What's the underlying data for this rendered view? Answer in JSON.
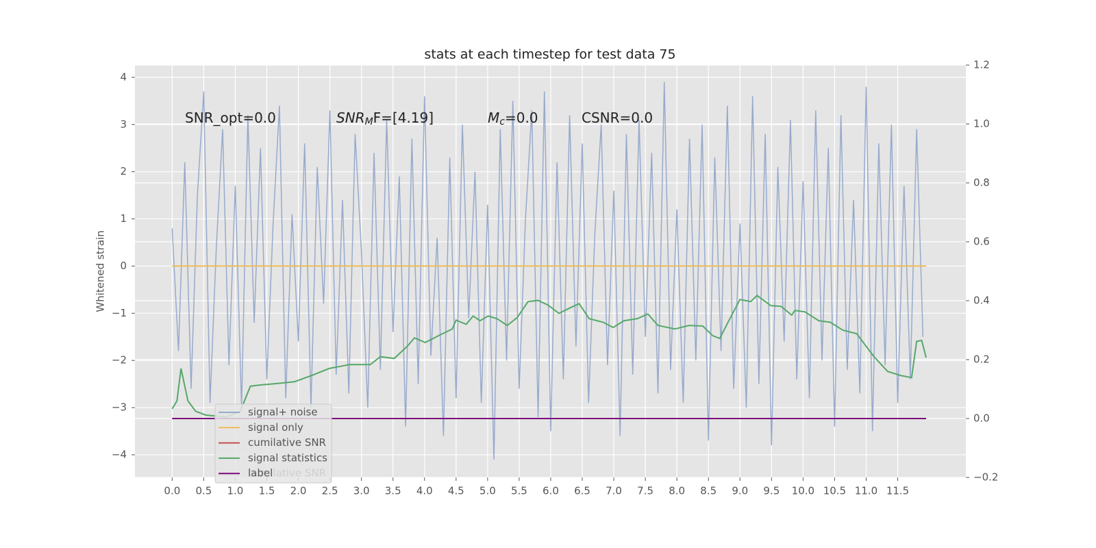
{
  "chart_data": {
    "type": "line",
    "title": "stats at each timestep for test data 75",
    "y_label": "Whitened strain",
    "xlim": [
      -0.59,
      12.58
    ],
    "ylim": [
      -4.48,
      4.26
    ],
    "y2lim": [
      -0.2,
      1.2
    ],
    "grid": true,
    "xticks": [
      {
        "value": 0,
        "label": "0.0"
      },
      0.5,
      {
        "value": 1,
        "label": "1.0"
      },
      1.5,
      {
        "value": 2,
        "label": "2.0"
      },
      2.5,
      {
        "value": 3,
        "label": "3.0"
      },
      3.5,
      {
        "value": 4,
        "label": "4.0"
      },
      4.5,
      {
        "value": 5,
        "label": "5.0"
      },
      5.5,
      {
        "value": 6,
        "label": "6.0"
      },
      6.5,
      {
        "value": 7,
        "label": "7.0"
      },
      7.5,
      {
        "value": 8,
        "label": "8.0"
      },
      8.5,
      {
        "value": 9,
        "label": "9.0"
      },
      9.5,
      {
        "value": 10,
        "label": "10.0"
      },
      10.5,
      {
        "value": 11,
        "label": "11.0"
      },
      11.5
    ],
    "yticks": [
      {
        "value": -4,
        "label": "−4"
      },
      {
        "value": -3,
        "label": "−3"
      },
      {
        "value": -2,
        "label": "−2"
      },
      {
        "value": -1,
        "label": "−1"
      },
      0,
      1,
      2,
      3,
      4
    ],
    "y2ticks": [
      {
        "value": -0.2,
        "label": "−0.2"
      },
      {
        "value": 0,
        "label": "0.0"
      },
      0.2,
      0.4,
      0.6,
      0.8,
      {
        "value": 1,
        "label": "1.0"
      },
      1.2
    ],
    "annotations": [
      {
        "text": "SNR_opt=0.0"
      },
      {
        "italic": "SNR",
        "sub": "M",
        "text": "F=[4.19]"
      },
      {
        "italic": "M",
        "sub": "c",
        "text": "=0.0"
      },
      {
        "text": "CSNR=0.0"
      }
    ],
    "series": [
      {
        "name": "signal+ noise",
        "color": "#97aacd",
        "axis": "y",
        "x": [
          0,
          0.1,
          0.2,
          0.3,
          0.4,
          0.5,
          0.6,
          0.7,
          0.8,
          0.9,
          1,
          1.1,
          1.2,
          1.3,
          1.4,
          1.5,
          1.6,
          1.7,
          1.8,
          1.9,
          2,
          2.1,
          2.2,
          2.3,
          2.4,
          2.5,
          2.6,
          2.7,
          2.8,
          2.9,
          3,
          3.1,
          3.2,
          3.3,
          3.4,
          3.5,
          3.6,
          3.7,
          3.8,
          3.9,
          4,
          4.1,
          4.2,
          4.3,
          4.4,
          4.5,
          4.6,
          4.7,
          4.8,
          4.9,
          5,
          5.1,
          5.2,
          5.3,
          5.4,
          5.5,
          5.6,
          5.7,
          5.8,
          5.9,
          6,
          6.1,
          6.2,
          6.3,
          6.4,
          6.5,
          6.6,
          6.7,
          6.8,
          6.9,
          7,
          7.1,
          7.2,
          7.3,
          7.4,
          7.5,
          7.6,
          7.7,
          7.8,
          7.9,
          8,
          8.1,
          8.2,
          8.3,
          8.4,
          8.5,
          8.6,
          8.7,
          8.8,
          8.9,
          9,
          9.1,
          9.2,
          9.3,
          9.4,
          9.5,
          9.6,
          9.7,
          9.8,
          9.9,
          10,
          10.1,
          10.2,
          10.3,
          10.4,
          10.5,
          10.6,
          10.7,
          10.8,
          10.9,
          11,
          11.1,
          11.2,
          11.3,
          11.4,
          11.5,
          11.6,
          11.7,
          11.8,
          11.9
        ],
        "values": [
          0.8,
          -1.8,
          2.2,
          -2.6,
          1.5,
          3.7,
          -2.9,
          0.4,
          2.9,
          -2.1,
          1.7,
          -3.0,
          3.2,
          -1.2,
          2.5,
          -2.4,
          0.9,
          3.4,
          -2.8,
          1.1,
          -1.6,
          2.6,
          -3.0,
          2.1,
          -0.8,
          3.3,
          -2.3,
          1.4,
          -2.7,
          2.8,
          0.3,
          -3.0,
          2.4,
          -2.2,
          3.1,
          -1.4,
          1.9,
          -3.4,
          2.7,
          -2.5,
          3.6,
          -1.9,
          0.6,
          -3.6,
          2.3,
          -2.8,
          3.0,
          -1.1,
          2.0,
          -2.9,
          1.3,
          -4.1,
          2.9,
          -2.0,
          3.5,
          -2.6,
          1.0,
          3.3,
          -3.2,
          3.7,
          -3.5,
          2.2,
          -2.4,
          3.2,
          -1.7,
          2.6,
          -2.9,
          0.7,
          3.0,
          -2.1,
          1.6,
          -3.6,
          2.8,
          -2.3,
          3.1,
          -1.5,
          2.4,
          -2.7,
          3.9,
          -2.2,
          1.2,
          -2.9,
          2.7,
          -2.0,
          3.0,
          -3.7,
          2.3,
          -1.8,
          3.4,
          -2.6,
          0.9,
          -3.0,
          3.6,
          -2.5,
          2.8,
          -3.8,
          2.1,
          -1.6,
          3.1,
          -2.4,
          1.8,
          -2.8,
          3.3,
          -2.0,
          2.5,
          -3.4,
          3.2,
          -2.2,
          1.4,
          -2.7,
          3.8,
          -3.5,
          2.6,
          -2.1,
          3.0,
          -2.9,
          1.7,
          -2.4,
          2.9,
          -1.5
        ]
      },
      {
        "name": "signal only",
        "color": "#eebc58",
        "axis": "y",
        "x": [
          0,
          11.95
        ],
        "values": [
          0,
          0
        ]
      },
      {
        "name": "cumilative SNR",
        "color": "#c44e52",
        "axis": "y2",
        "x": [
          0,
          11.95
        ],
        "values": [
          0,
          0
        ]
      },
      {
        "name": "signal statistics",
        "color": "#55a868",
        "axis": "y2",
        "x": [
          0,
          0.076,
          0.14,
          0.25,
          0.37,
          0.53,
          0.86,
          1.08,
          1.24,
          1.4,
          1.62,
          1.94,
          2.21,
          2.49,
          2.81,
          3.14,
          3.3,
          3.52,
          3.73,
          3.84,
          4.01,
          4.22,
          4.44,
          4.5,
          4.66,
          4.77,
          4.88,
          5.01,
          5.15,
          5.31,
          5.47,
          5.64,
          5.8,
          5.96,
          6.13,
          6.29,
          6.45,
          6.61,
          6.83,
          6.99,
          7.16,
          7.37,
          7.54,
          7.7,
          7.97,
          8.19,
          8.41,
          8.57,
          8.68,
          8.84,
          9,
          9.17,
          9.27,
          9.49,
          9.65,
          9.82,
          9.87,
          10.03,
          10.25,
          10.43,
          10.63,
          10.85,
          11.12,
          11.34,
          11.55,
          11.72,
          11.8,
          11.88,
          11.95
        ],
        "values": [
          0.033,
          0.06,
          0.17,
          0.06,
          0.025,
          0.012,
          0.005,
          0.025,
          0.11,
          0.114,
          0.118,
          0.125,
          0.146,
          0.17,
          0.183,
          0.183,
          0.21,
          0.204,
          0.246,
          0.274,
          0.258,
          0.281,
          0.304,
          0.334,
          0.32,
          0.348,
          0.332,
          0.348,
          0.339,
          0.316,
          0.343,
          0.397,
          0.401,
          0.385,
          0.357,
          0.374,
          0.39,
          0.339,
          0.327,
          0.309,
          0.332,
          0.339,
          0.355,
          0.316,
          0.304,
          0.316,
          0.314,
          0.281,
          0.272,
          0.339,
          0.404,
          0.397,
          0.418,
          0.383,
          0.381,
          0.351,
          0.367,
          0.362,
          0.332,
          0.327,
          0.3,
          0.288,
          0.211,
          0.16,
          0.146,
          0.139,
          0.262,
          0.265,
          0.207
        ]
      },
      {
        "name": "label",
        "color": "#7b0a7b",
        "axis": "y2",
        "x": [
          0,
          11.95
        ],
        "values": [
          0,
          0
        ]
      }
    ]
  }
}
